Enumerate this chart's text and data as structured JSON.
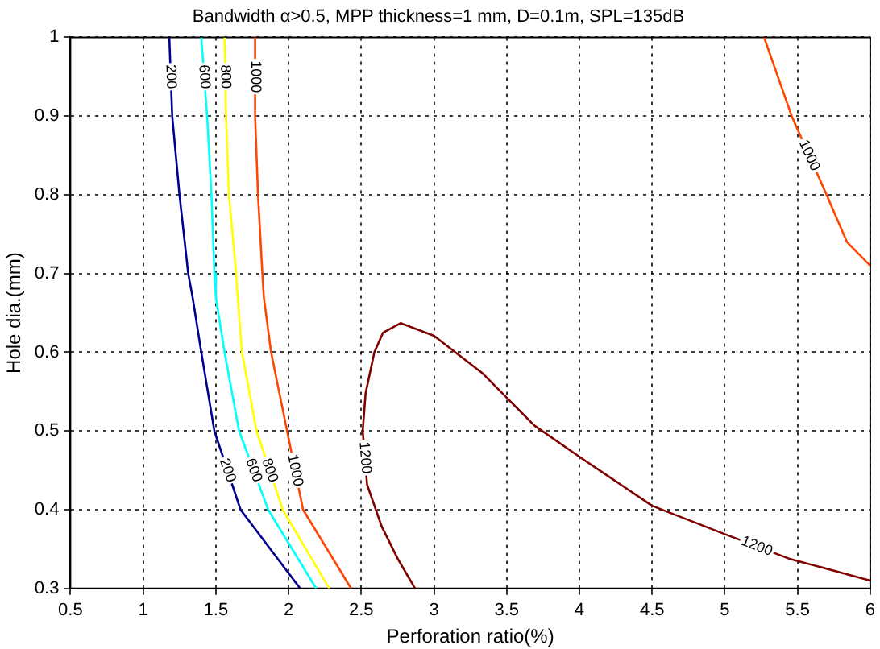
{
  "chart_data": {
    "type": "line",
    "title": "Bandwidth α>0.5, MPP thickness=1 mm, D=0.1m, SPL=135dB",
    "xlabel": "Perforation ratio(%)",
    "ylabel": "Hole dia.(mm)",
    "xlim": [
      0.5,
      6
    ],
    "ylim": [
      0.3,
      1
    ],
    "xticks": [
      0.5,
      1,
      1.5,
      2,
      2.5,
      3,
      3.5,
      4,
      4.5,
      5,
      5.5,
      6
    ],
    "yticks": [
      0.3,
      0.4,
      0.5,
      0.6,
      0.7,
      0.8,
      0.9,
      1
    ],
    "grid": true,
    "legend": false,
    "marker": "none",
    "line_style": "solid",
    "series": [
      {
        "name": "200",
        "color": "#00008f",
        "x": [
          1.18,
          1.2,
          1.25,
          1.31,
          1.34,
          1.4,
          1.49,
          1.67,
          2.08
        ],
        "values": [
          1,
          0.9,
          0.8,
          0.7,
          0.67,
          0.6,
          0.5,
          0.4,
          0.3
        ]
      },
      {
        "name": "600",
        "color": "#00ffff",
        "x": [
          1.4,
          1.44,
          1.47,
          1.49,
          1.5,
          1.56,
          1.66,
          1.86,
          2.19
        ],
        "values": [
          1,
          0.9,
          0.8,
          0.7,
          0.67,
          0.6,
          0.5,
          0.4,
          0.3
        ]
      },
      {
        "name": "800",
        "color": "#ffff00",
        "x": [
          1.56,
          1.57,
          1.59,
          1.64,
          1.65,
          1.68,
          1.78,
          1.96,
          2.28
        ],
        "values": [
          1,
          0.9,
          0.8,
          0.7,
          0.67,
          0.6,
          0.5,
          0.4,
          0.3
        ]
      },
      {
        "name": "1000",
        "color": "#ff4500",
        "x": [
          1.77,
          1.77,
          1.79,
          1.82,
          1.83,
          1.88,
          1.99,
          2.1,
          2.43,
          null,
          5.27,
          5.46,
          5.7,
          5.84,
          6
        ],
        "values": [
          1,
          0.9,
          0.8,
          0.7,
          0.67,
          0.6,
          0.5,
          0.4,
          0.3,
          null,
          1,
          0.9,
          0.8,
          0.74,
          0.71
        ]
      },
      {
        "name": "1200",
        "color": "#800000",
        "x": [
          2.87,
          2.75,
          2.64,
          2.54,
          2.51,
          2.53,
          2.59,
          2.65,
          2.77,
          3,
          3.33,
          3.69,
          4.01,
          4.5,
          5,
          5.44,
          6
        ],
        "values": [
          0.3,
          0.338,
          0.379,
          0.432,
          0.5,
          0.548,
          0.6,
          0.625,
          0.637,
          0.621,
          0.574,
          0.507,
          0.466,
          0.405,
          0.369,
          0.338,
          0.31
        ]
      }
    ]
  }
}
